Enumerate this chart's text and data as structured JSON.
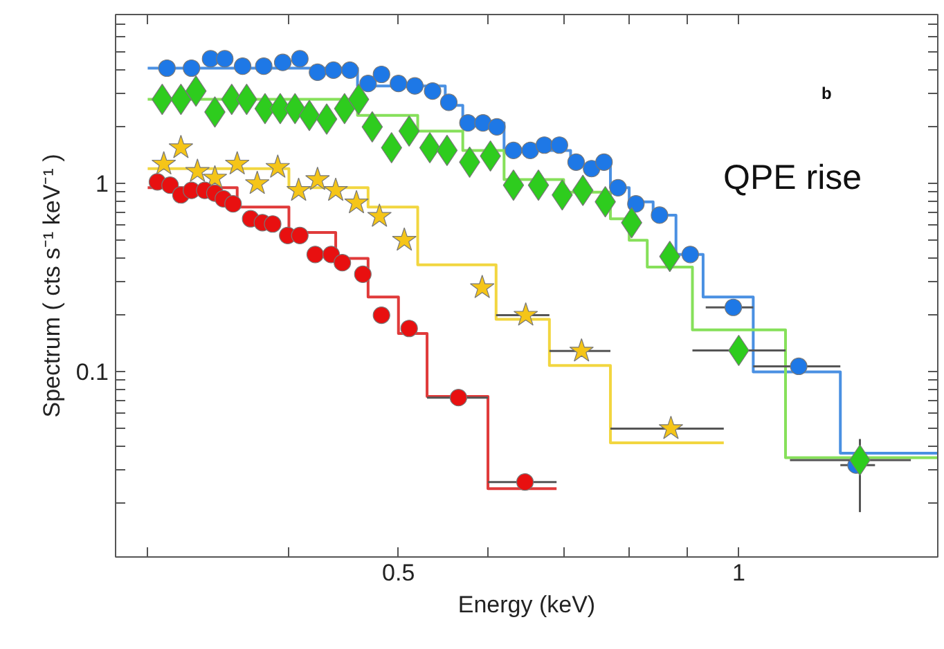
{
  "chart_data": {
    "type": "scatter",
    "xlabel": "Energy (keV)",
    "ylabel": "Spectrum ( cts s⁻¹ keV⁻¹ )",
    "annotations": [
      "b",
      "QPE rise"
    ],
    "log": "xy",
    "grid": false,
    "xlim": [
      0.281,
      1.5
    ],
    "ylim": [
      0.0104,
      7.9
    ],
    "xticks": [
      {
        "value": 0.3,
        "label": null
      },
      {
        "value": 0.4,
        "label": null
      },
      {
        "value": 0.5,
        "label": "0.5"
      },
      {
        "value": 0.6,
        "label": null
      },
      {
        "value": 0.7,
        "label": null
      },
      {
        "value": 0.8,
        "label": null
      },
      {
        "value": 0.9,
        "label": null
      },
      1
    ],
    "yticks": [
      {
        "value": 0.02,
        "label": null
      },
      {
        "value": 0.03,
        "label": null
      },
      {
        "value": 0.04,
        "label": null
      },
      {
        "value": 0.05,
        "label": null
      },
      {
        "value": 0.06,
        "label": null
      },
      {
        "value": 0.07,
        "label": null
      },
      {
        "value": 0.08,
        "label": null
      },
      {
        "value": 0.09,
        "label": null
      },
      {
        "value": 0.1,
        "label": "0.1"
      },
      {
        "value": 0.2,
        "label": null
      },
      {
        "value": 0.3,
        "label": null
      },
      {
        "value": 0.4,
        "label": null
      },
      {
        "value": 0.5,
        "label": null
      },
      {
        "value": 0.6,
        "label": null
      },
      {
        "value": 0.7,
        "label": null
      },
      {
        "value": 0.8,
        "label": null
      },
      {
        "value": 0.9,
        "label": null
      },
      1,
      {
        "value": 2,
        "label": null
      },
      {
        "value": 3,
        "label": null
      },
      {
        "value": 4,
        "label": null
      },
      {
        "value": 5,
        "label": null
      },
      {
        "value": 6,
        "label": null
      },
      {
        "value": 7,
        "label": null
      }
    ],
    "series": [
      {
        "type": "step",
        "color": "#4a90e2",
        "x": [
          0.3,
          0.46,
          0.55,
          0.57,
          0.62,
          0.71,
          0.77,
          0.8,
          0.84,
          0.88,
          0.93,
          1.03,
          1.23,
          1.5
        ],
        "values": [
          4.1,
          3.3,
          2.6,
          2.1,
          1.5,
          1.25,
          0.95,
          0.8,
          0.68,
          0.42,
          0.25,
          0.1,
          0.037,
          0.037
        ]
      },
      {
        "type": "step",
        "color": "#86e05a",
        "x": [
          0.3,
          0.46,
          0.52,
          0.57,
          0.62,
          0.7,
          0.77,
          0.8,
          0.83,
          0.91,
          1.1,
          1.5
        ],
        "values": [
          2.8,
          2.3,
          1.9,
          1.5,
          1.05,
          0.9,
          0.65,
          0.5,
          0.36,
          0.167,
          0.035,
          0.035
        ]
      },
      {
        "type": "step",
        "color": "#f2d640",
        "x": [
          0.3,
          0.4,
          0.47,
          0.52,
          0.61,
          0.68,
          0.77,
          0.97
        ],
        "values": [
          1.2,
          0.95,
          0.75,
          0.37,
          0.19,
          0.108,
          0.042,
          0.042
        ]
      },
      {
        "type": "step",
        "color": "#e03a3a",
        "x": [
          0.3,
          0.36,
          0.4,
          0.44,
          0.47,
          0.5,
          0.53,
          0.6,
          0.69
        ],
        "values": [
          0.95,
          0.75,
          0.55,
          0.4,
          0.25,
          0.16,
          0.074,
          0.024,
          0.024
        ]
      },
      {
        "marker": "circle",
        "color": "#1e78e6",
        "x": [
          0.312,
          0.328,
          0.341,
          0.351,
          0.364,
          0.38,
          0.395,
          0.409,
          0.424,
          0.438,
          0.453,
          0.47,
          0.483,
          0.5,
          0.517,
          0.536,
          0.554,
          0.576,
          0.594,
          0.611,
          0.632,
          0.654,
          0.673,
          0.694,
          0.718,
          0.741,
          0.76,
          0.782,
          0.811,
          0.851,
          0.906,
          0.989,
          1.13,
          1.27
        ],
        "values": [
          4.1,
          4.1,
          4.6,
          4.6,
          4.2,
          4.2,
          4.4,
          4.6,
          3.9,
          4.0,
          4.0,
          3.4,
          3.8,
          3.4,
          3.3,
          3.1,
          2.7,
          2.1,
          2.1,
          2.0,
          1.5,
          1.5,
          1.6,
          1.6,
          1.3,
          1.2,
          1.3,
          0.95,
          0.78,
          0.68,
          0.42,
          0.22,
          0.107,
          0.032
        ],
        "xerrors": [
          null,
          null,
          null,
          null,
          null,
          null,
          null,
          null,
          null,
          null,
          null,
          null,
          null,
          null,
          null,
          null,
          null,
          null,
          null,
          null,
          null,
          null,
          null,
          null,
          null,
          null,
          null,
          null,
          null,
          null,
          null,
          [
            0.935,
            1.03
          ],
          [
            1.03,
            1.23
          ],
          [
            1.23,
            1.32
          ]
        ]
      },
      {
        "marker": "diamond",
        "color": "#2ecc1e",
        "x": [
          0.309,
          0.321,
          0.331,
          0.344,
          0.356,
          0.367,
          0.381,
          0.393,
          0.405,
          0.417,
          0.432,
          0.448,
          0.461,
          0.474,
          0.493,
          0.511,
          0.533,
          0.552,
          0.578,
          0.603,
          0.632,
          0.665,
          0.698,
          0.728,
          0.762,
          0.804,
          0.869,
          1.0,
          1.28
        ],
        "values": [
          2.8,
          2.8,
          3.1,
          2.4,
          2.8,
          2.8,
          2.5,
          2.5,
          2.5,
          2.3,
          2.2,
          2.5,
          2.8,
          2.0,
          1.55,
          1.9,
          1.55,
          1.5,
          1.3,
          1.4,
          0.98,
          0.98,
          0.87,
          0.92,
          0.8,
          0.62,
          0.41,
          0.13,
          0.034
        ],
        "xerrors": [
          null,
          null,
          null,
          null,
          null,
          null,
          null,
          null,
          null,
          null,
          null,
          null,
          null,
          null,
          null,
          null,
          null,
          null,
          null,
          null,
          null,
          null,
          null,
          null,
          null,
          null,
          null,
          [
            0.91,
            1.1
          ],
          [
            1.11,
            1.42
          ]
        ],
        "errors": [
          null,
          null,
          null,
          null,
          null,
          null,
          null,
          null,
          null,
          null,
          null,
          null,
          null,
          null,
          null,
          null,
          null,
          null,
          null,
          null,
          null,
          null,
          null,
          null,
          null,
          null,
          null,
          null,
          [
            0.018,
            0.044
          ]
        ]
      },
      {
        "marker": "star",
        "color": "#f5c518",
        "x": [
          0.31,
          0.321,
          0.332,
          0.344,
          0.36,
          0.375,
          0.391,
          0.408,
          0.424,
          0.44,
          0.459,
          0.481,
          0.506,
          0.593,
          0.648,
          0.726,
          0.871
        ],
        "values": [
          1.27,
          1.55,
          1.16,
          1.07,
          1.27,
          1.0,
          1.22,
          0.92,
          1.05,
          0.92,
          0.79,
          0.67,
          0.5,
          0.28,
          0.2,
          0.129,
          0.05
        ],
        "xerrors": [
          null,
          null,
          null,
          null,
          null,
          null,
          null,
          null,
          null,
          null,
          null,
          null,
          null,
          null,
          [
            0.61,
            0.68
          ],
          [
            0.68,
            0.77
          ],
          [
            0.77,
            0.97
          ]
        ]
      },
      {
        "marker": "circle",
        "color": "#e81010",
        "x": [
          0.306,
          0.314,
          0.321,
          0.328,
          0.337,
          0.344,
          0.35,
          0.357,
          0.37,
          0.379,
          0.387,
          0.399,
          0.409,
          0.422,
          0.436,
          0.446,
          0.465,
          0.483,
          0.511,
          0.565,
          0.647
        ],
        "values": [
          1.02,
          0.98,
          0.87,
          0.92,
          0.92,
          0.89,
          0.83,
          0.78,
          0.65,
          0.62,
          0.61,
          0.53,
          0.53,
          0.42,
          0.42,
          0.38,
          0.33,
          0.2,
          0.17,
          0.073,
          0.026
        ],
        "xerrors": [
          null,
          null,
          null,
          null,
          null,
          null,
          null,
          null,
          null,
          null,
          null,
          null,
          null,
          null,
          null,
          null,
          null,
          null,
          null,
          [
            0.53,
            0.6
          ],
          [
            0.6,
            0.69
          ]
        ]
      }
    ]
  }
}
